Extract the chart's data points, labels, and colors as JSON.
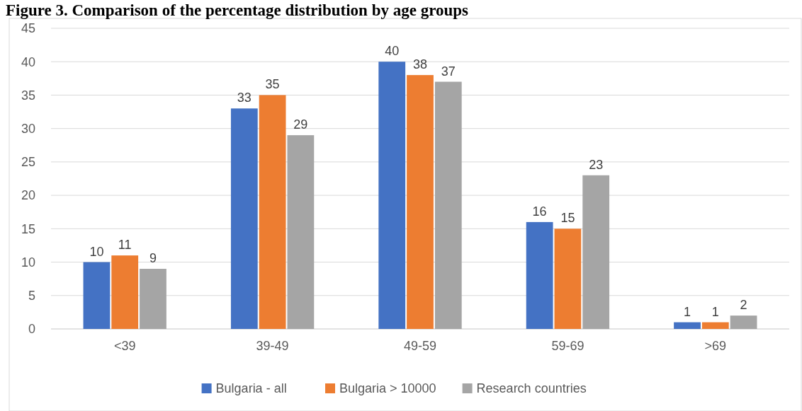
{
  "chart_data": {
    "type": "bar",
    "title": "Figure 3. Comparison of the percentage distribution by age groups",
    "categories": [
      "<39",
      "39-49",
      "49-59",
      "59-69",
      ">69"
    ],
    "series": [
      {
        "name": "Bulgaria - all",
        "color": "#4472c4",
        "values": [
          10,
          33,
          40,
          16,
          1
        ]
      },
      {
        "name": "Bulgaria > 10000",
        "color": "#ed7d31",
        "values": [
          11,
          35,
          38,
          15,
          1
        ]
      },
      {
        "name": "Research countries",
        "color": "#a5a5a5",
        "values": [
          9,
          29,
          37,
          23,
          2
        ]
      }
    ],
    "ylim": [
      0,
      45
    ],
    "yticks": [
      0,
      5,
      10,
      15,
      20,
      25,
      30,
      35,
      40,
      45
    ],
    "grid": "y",
    "legend": "bottom",
    "data_labels": true
  }
}
